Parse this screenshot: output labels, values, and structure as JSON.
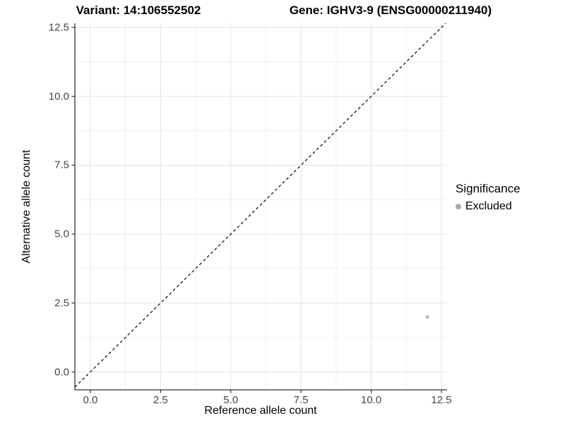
{
  "chart_data": {
    "type": "scatter",
    "titles": {
      "left": "Variant: 14:106552502",
      "right": "Gene: IGHV3-9 (ENSG00000211940)"
    },
    "xlabel": "Reference allele count",
    "ylabel": "Alternative allele count",
    "xlim": [
      -0.55,
      12.7
    ],
    "ylim": [
      -0.65,
      12.65
    ],
    "x_ticks": [
      0.0,
      2.5,
      5.0,
      7.5,
      10.0,
      12.5
    ],
    "y_ticks": [
      0.0,
      2.5,
      5.0,
      7.5,
      10.0,
      12.5
    ],
    "x_tick_labels": [
      "0.0",
      "2.5",
      "5.0",
      "7.5",
      "10.0",
      "12.5"
    ],
    "y_tick_labels": [
      "0.0",
      "2.5",
      "5.0",
      "7.5",
      "10.0",
      "12.5"
    ],
    "minor_ticks": [
      1.25,
      3.75,
      6.25,
      8.75,
      11.25
    ],
    "grid": true,
    "reference_line": {
      "type": "identity",
      "style": "dashed",
      "color": "#000000"
    },
    "series": [
      {
        "name": "Excluded",
        "color": "#bcbcbc",
        "points": [
          {
            "x": 12,
            "y": 2
          }
        ]
      }
    ],
    "legend": {
      "title": "Significance",
      "position": "right",
      "entries": [
        {
          "label": "Excluded",
          "color": "#a9a9a9"
        }
      ]
    }
  },
  "colors": {
    "background": "#ffffff",
    "grid_major": "#e3e3e3",
    "grid_minor": "#efefef",
    "axis_line": "#333333",
    "tick_label": "#454545",
    "point": "#bcbcbc",
    "legend_key": "#a9a9a9",
    "reference_line": "#000000"
  }
}
